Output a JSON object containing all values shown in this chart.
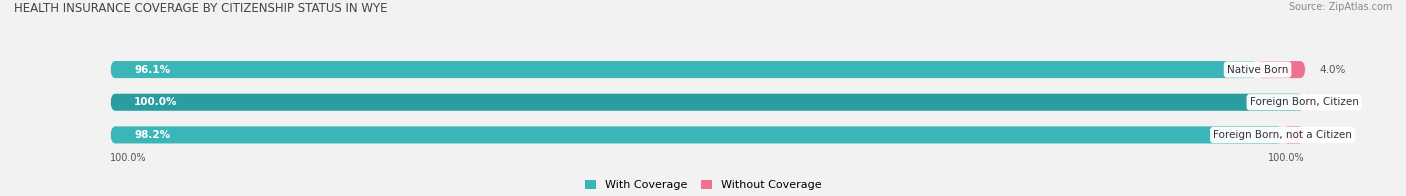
{
  "title": "HEALTH INSURANCE COVERAGE BY CITIZENSHIP STATUS IN WYE",
  "source": "Source: ZipAtlas.com",
  "categories": [
    "Native Born",
    "Foreign Born, Citizen",
    "Foreign Born, not a Citizen"
  ],
  "with_coverage": [
    96.1,
    100.0,
    98.2
  ],
  "without_coverage": [
    4.0,
    0.0,
    1.8
  ],
  "color_with": "#3ab5b8",
  "color_with2": "#2a9da0",
  "color_without": "#f07090",
  "bar_height": 0.52,
  "background_color": "#f2f2f2",
  "bar_bg_color": "#e0e0e0",
  "title_color": "#444444",
  "label_color": "#555555",
  "white_text": "#ffffff",
  "source_color": "#888888"
}
